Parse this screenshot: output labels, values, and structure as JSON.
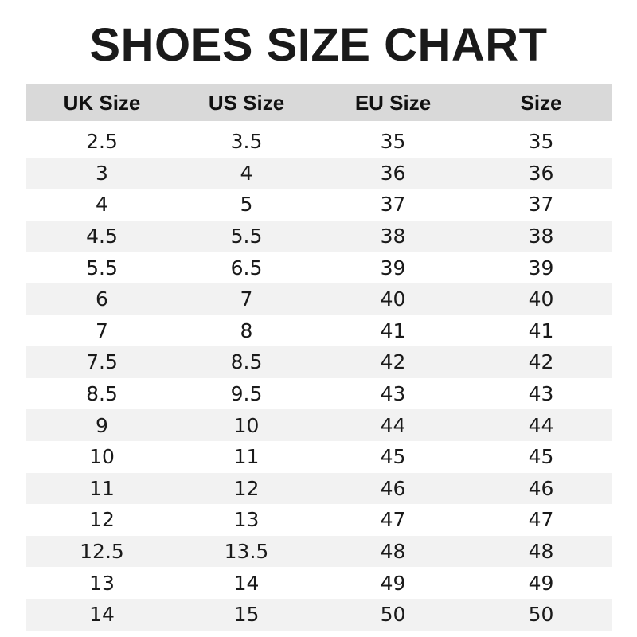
{
  "title": "SHOES SIZE CHART",
  "colors": {
    "header_bg": "#d9d9d9",
    "stripe_bg": "#f2f2f2"
  },
  "table": {
    "headers": [
      "UK Size",
      "US Size",
      "EU Size",
      "Size"
    ],
    "rows": [
      [
        "2.5",
        "3.5",
        "35",
        "35"
      ],
      [
        "3",
        "4",
        "36",
        "36"
      ],
      [
        "4",
        "5",
        "37",
        "37"
      ],
      [
        "4.5",
        "5.5",
        "38",
        "38"
      ],
      [
        "5.5",
        "6.5",
        "39",
        "39"
      ],
      [
        "6",
        "7",
        "40",
        "40"
      ],
      [
        "7",
        "8",
        "41",
        "41"
      ],
      [
        "7.5",
        "8.5",
        "42",
        "42"
      ],
      [
        "8.5",
        "9.5",
        "43",
        "43"
      ],
      [
        "9",
        "10",
        "44",
        "44"
      ],
      [
        "10",
        "11",
        "45",
        "45"
      ],
      [
        "11",
        "12",
        "46",
        "46"
      ],
      [
        "12",
        "13",
        "47",
        "47"
      ],
      [
        "12.5",
        "13.5",
        "48",
        "48"
      ],
      [
        "13",
        "14",
        "49",
        "49"
      ],
      [
        "14",
        "15",
        "50",
        "50"
      ]
    ]
  }
}
